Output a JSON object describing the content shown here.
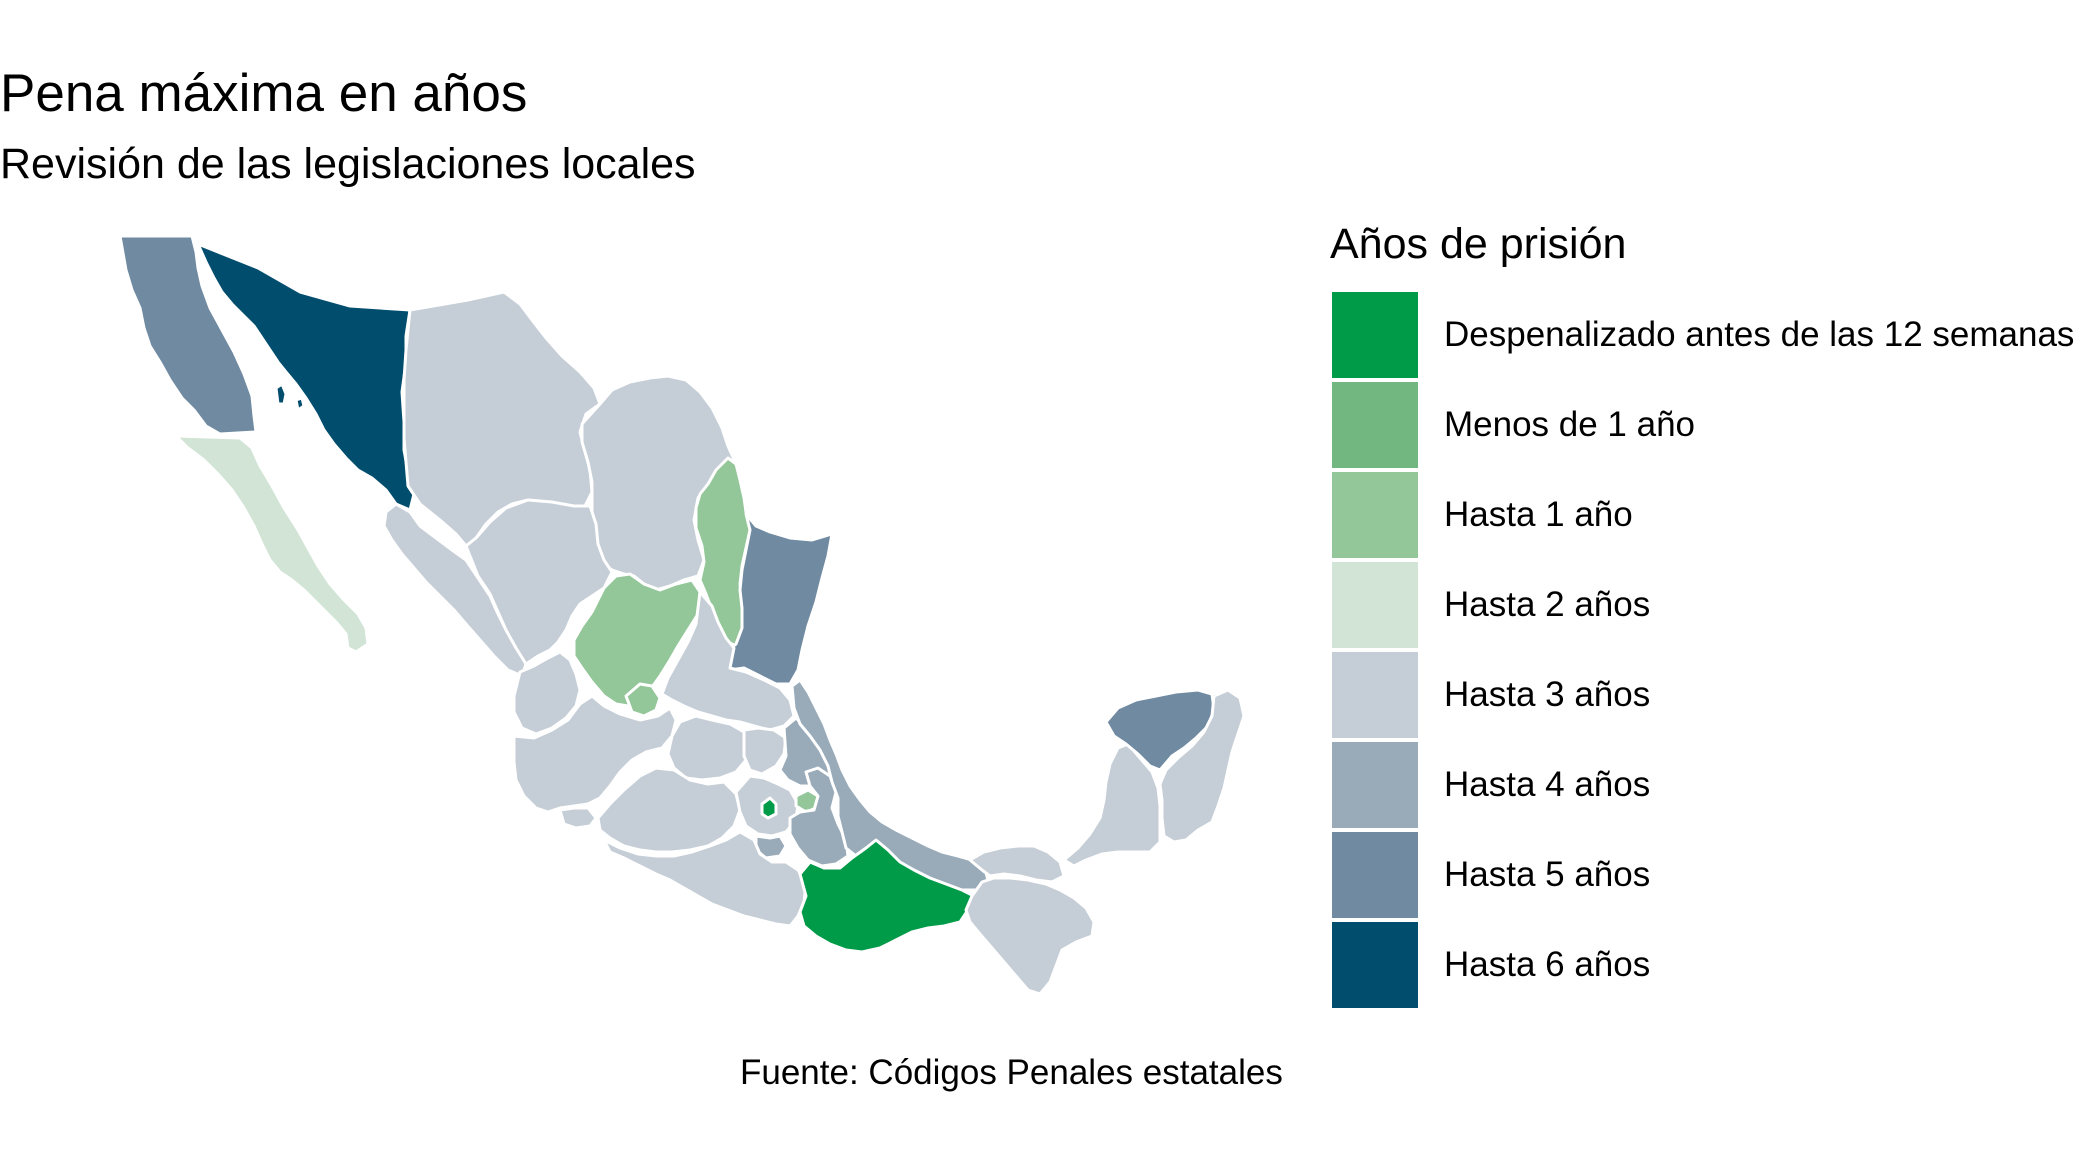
{
  "header": {
    "title": "Pena máxima en años",
    "subtitle": "Revisión de las legislaciones locales"
  },
  "legend": {
    "title": "Años de prisión",
    "items": [
      {
        "label": "Despenalizado antes de las 12 semanas",
        "color": "#009B48"
      },
      {
        "label": "Menos de 1 año",
        "color": "#72B680"
      },
      {
        "label": "Hasta 1 año",
        "color": "#93C699"
      },
      {
        "label": "Hasta 2 años",
        "color": "#D1E4D5"
      },
      {
        "label": "Hasta 3 años",
        "color": "#C5CDD6"
      },
      {
        "label": "Hasta 4 años",
        "color": "#99AAB9"
      },
      {
        "label": "Hasta 5 años",
        "color": "#6F8AA1"
      },
      {
        "label": "Hasta 6 años",
        "color": "#004D6D"
      }
    ]
  },
  "caption": "Fuente: Códigos Penales estatales",
  "map": {
    "border_color": "#FFFFFF",
    "background": "#FFFFFF"
  }
}
